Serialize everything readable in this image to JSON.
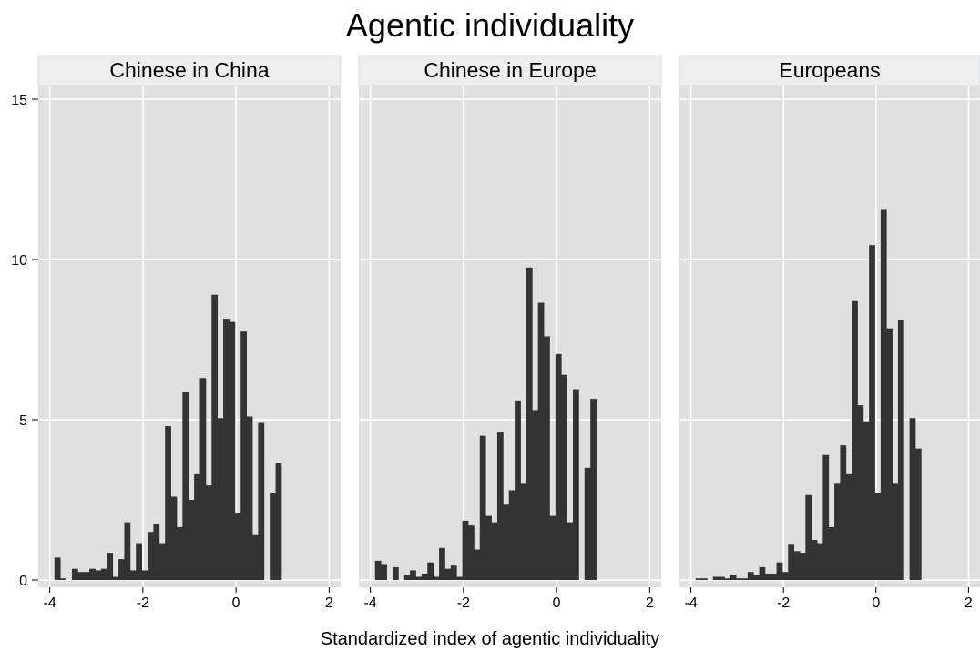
{
  "chart_data": {
    "type": "bar",
    "title": "Agentic individuality",
    "xlabel": "Standardized index of agentic individuality",
    "ylabel": "",
    "xlim": [
      -4.15,
      2.15
    ],
    "ylim": [
      0,
      15
    ],
    "x_ticks": [
      "-4",
      "-2",
      "0",
      "2"
    ],
    "y_ticks": [
      "0",
      "5",
      "10",
      "15"
    ],
    "grid": true,
    "bin_width": 0.125,
    "bin_start": -3.9,
    "colors": {
      "bar": "#333333",
      "panel_bg": "#e0e0e0",
      "strip_bg": "#eeeeee",
      "grid": "#ffffff"
    },
    "facets": [
      {
        "label": "Chinese in China",
        "values": [
          0.7,
          0.05,
          0,
          0.35,
          0.25,
          0.25,
          0.35,
          0.3,
          0.35,
          0.85,
          0.1,
          0.65,
          1.8,
          0.3,
          1.15,
          0.3,
          1.5,
          1.75,
          1.15,
          4.8,
          2.6,
          1.65,
          5.85,
          2.5,
          3.3,
          6.3,
          2.95,
          8.9,
          5.05,
          8.15,
          8.05,
          2.1,
          7.75,
          5.1,
          1.4,
          4.9,
          0,
          2.7,
          3.65
        ]
      },
      {
        "label": "Chinese in Europe",
        "values": [
          0.6,
          0.5,
          0,
          0.4,
          0,
          0.15,
          0.3,
          0.1,
          0.2,
          0.55,
          0.1,
          1.0,
          0.35,
          0.45,
          0.1,
          1.85,
          1.7,
          0.95,
          4.5,
          2.0,
          1.8,
          4.6,
          2.35,
          2.8,
          5.6,
          3.0,
          9.75,
          5.3,
          8.65,
          7.6,
          2.0,
          7.05,
          6.4,
          1.8,
          5.95,
          0,
          3.5,
          5.65,
          0
        ]
      },
      {
        "label": "Europeans",
        "values": [
          0.05,
          0.05,
          0,
          0.1,
          0.1,
          0.05,
          0.15,
          0.05,
          0.05,
          0.25,
          0.15,
          0.4,
          0.2,
          0.2,
          0.55,
          0.25,
          1.1,
          0.9,
          0.85,
          2.65,
          1.25,
          1.15,
          3.9,
          1.65,
          3.0,
          4.2,
          3.3,
          8.7,
          5.45,
          4.95,
          10.45,
          2.7,
          11.55,
          7.85,
          3.0,
          8.1,
          0,
          5.05,
          4.1
        ]
      }
    ]
  }
}
